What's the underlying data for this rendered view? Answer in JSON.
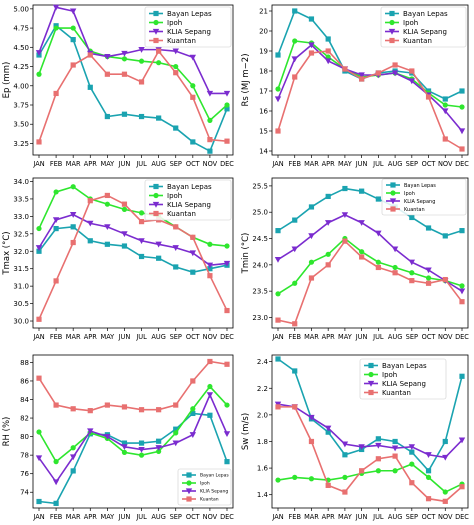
{
  "chart_data": [
    {
      "type": "line",
      "title": "",
      "xlabel": "",
      "ylabel": "Ep (mm)",
      "categories": [
        "JAN",
        "FEB",
        "MAR",
        "APR",
        "MAY",
        "JUN",
        "JUL",
        "AUG",
        "SEP",
        "OCT",
        "NOV",
        "DEC"
      ],
      "ylim": [
        3.1,
        5.05
      ],
      "yticks": [
        "3.25",
        "3.50",
        "3.75",
        "4.00",
        "4.25",
        "4.50",
        "4.75",
        "5.00"
      ],
      "legend_position": "top-right",
      "series": [
        {
          "name": "Bayan Lepas",
          "color": "#1aa3b0",
          "marker": "square",
          "values": [
            4.4,
            4.78,
            4.6,
            3.98,
            3.6,
            3.63,
            3.6,
            3.58,
            3.45,
            3.27,
            3.15,
            3.7
          ]
        },
        {
          "name": "Ipoh",
          "color": "#2ee62e",
          "marker": "circle",
          "values": [
            4.15,
            4.75,
            4.75,
            4.45,
            4.38,
            4.35,
            4.32,
            4.3,
            4.25,
            4.0,
            3.55,
            3.75
          ]
        },
        {
          "name": "KLIA Sepang",
          "color": "#7b2ccf",
          "marker": "triangle-down",
          "values": [
            4.43,
            5.02,
            4.97,
            4.42,
            4.38,
            4.42,
            4.47,
            4.47,
            4.45,
            4.37,
            3.9,
            3.9
          ]
        },
        {
          "name": "Kuantan",
          "color": "#e87070",
          "marker": "square",
          "values": [
            3.27,
            3.9,
            4.27,
            4.4,
            4.15,
            4.15,
            4.05,
            4.45,
            4.17,
            3.85,
            3.3,
            3.28
          ]
        }
      ]
    },
    {
      "type": "line",
      "title": "",
      "xlabel": "",
      "ylabel": "Rs (MJ m−2)",
      "categories": [
        "JAN",
        "FEB",
        "MAR",
        "APR",
        "MAY",
        "JUN",
        "JUL",
        "AUG",
        "SEP",
        "OCT",
        "NOV",
        "DEC"
      ],
      "ylim": [
        13.8,
        21.3
      ],
      "yticks": [
        "14",
        "15",
        "16",
        "17",
        "18",
        "19",
        "20",
        "21"
      ],
      "legend_position": "top-right",
      "series": [
        {
          "name": "Bayan Lepas",
          "color": "#1aa3b0",
          "marker": "square",
          "values": [
            18.8,
            21.0,
            20.6,
            19.6,
            18.0,
            17.6,
            17.9,
            18.0,
            17.9,
            17.0,
            16.6,
            17.0
          ]
        },
        {
          "name": "Ipoh",
          "color": "#2ee62e",
          "marker": "circle",
          "values": [
            17.1,
            19.5,
            19.4,
            18.7,
            18.1,
            17.7,
            17.8,
            17.9,
            17.6,
            16.9,
            16.3,
            16.2
          ]
        },
        {
          "name": "KLIA Sepang",
          "color": "#7b2ccf",
          "marker": "triangle-down",
          "values": [
            16.6,
            18.6,
            19.3,
            18.5,
            18.1,
            17.8,
            17.8,
            17.9,
            17.5,
            16.8,
            16.0,
            15.0
          ]
        },
        {
          "name": "Kuantan",
          "color": "#e87070",
          "marker": "square",
          "values": [
            15.0,
            17.7,
            18.9,
            19.0,
            18.1,
            17.6,
            17.9,
            18.3,
            18.0,
            16.7,
            14.6,
            14.1
          ]
        }
      ]
    },
    {
      "type": "line",
      "title": "",
      "xlabel": "",
      "ylabel": "Tmax (°C)",
      "categories": [
        "JAN",
        "FEB",
        "MAR",
        "APR",
        "MAY",
        "JUN",
        "JUL",
        "AUG",
        "SEP",
        "OCT",
        "NOV",
        "DEC"
      ],
      "ylim": [
        29.8,
        34.1
      ],
      "yticks": [
        "30.0",
        "30.5",
        "31.0",
        "31.5",
        "32.0",
        "32.5",
        "33.0",
        "33.5",
        "34.0"
      ],
      "legend_position": "top-right",
      "series": [
        {
          "name": "Bayan Lepas",
          "color": "#1aa3b0",
          "marker": "square",
          "values": [
            32.0,
            32.65,
            32.7,
            32.3,
            32.2,
            32.15,
            31.85,
            31.8,
            31.55,
            31.4,
            31.5,
            31.6
          ]
        },
        {
          "name": "Ipoh",
          "color": "#2ee62e",
          "marker": "circle",
          "values": [
            32.65,
            33.7,
            33.85,
            33.5,
            33.35,
            33.2,
            33.1,
            33.0,
            32.7,
            32.4,
            32.2,
            32.15
          ]
        },
        {
          "name": "KLIA Sepang",
          "color": "#7b2ccf",
          "marker": "triangle-down",
          "values": [
            32.1,
            32.9,
            33.05,
            32.8,
            32.7,
            32.5,
            32.3,
            32.2,
            32.1,
            31.95,
            31.6,
            31.65
          ]
        },
        {
          "name": "Kuantan",
          "color": "#e87070",
          "marker": "square",
          "values": [
            30.05,
            31.15,
            32.25,
            33.45,
            33.6,
            33.35,
            32.85,
            32.9,
            32.7,
            32.4,
            31.3,
            30.3
          ]
        }
      ]
    },
    {
      "type": "line",
      "title": "",
      "xlabel": "",
      "ylabel": "Tmin (°C)",
      "categories": [
        "JAN",
        "FEB",
        "MAR",
        "APR",
        "MAY",
        "JUN",
        "JUL",
        "AUG",
        "SEP",
        "OCT",
        "NOV",
        "DEC"
      ],
      "ylim": [
        22.8,
        25.65
      ],
      "yticks": [
        "23.0",
        "23.5",
        "24.0",
        "24.5",
        "25.0",
        "25.5"
      ],
      "legend_position": "top-right",
      "series": [
        {
          "name": "Bayan Lepas",
          "color": "#1aa3b0",
          "marker": "square",
          "values": [
            24.65,
            24.85,
            25.1,
            25.3,
            25.45,
            25.4,
            25.25,
            25.1,
            24.9,
            24.7,
            24.55,
            24.65
          ]
        },
        {
          "name": "Ipoh",
          "color": "#2ee62e",
          "marker": "circle",
          "values": [
            23.45,
            23.65,
            24.05,
            24.2,
            24.5,
            24.25,
            24.05,
            23.95,
            23.85,
            23.75,
            23.7,
            23.6
          ]
        },
        {
          "name": "KLIA Sepang",
          "color": "#7b2ccf",
          "marker": "triangle-down",
          "values": [
            24.1,
            24.3,
            24.55,
            24.8,
            24.95,
            24.8,
            24.6,
            24.3,
            24.05,
            23.9,
            23.7,
            23.5
          ]
        },
        {
          "name": "Kuantan",
          "color": "#e87070",
          "marker": "square",
          "values": [
            22.95,
            22.88,
            23.75,
            24.0,
            24.45,
            24.15,
            23.95,
            23.85,
            23.7,
            23.65,
            23.72,
            23.3
          ]
        }
      ]
    },
    {
      "type": "line",
      "title": "",
      "xlabel": "",
      "ylabel": "RH (%)",
      "categories": [
        "JAN",
        "FEB",
        "MAR",
        "APR",
        "MAY",
        "JUN",
        "JUL",
        "AUG",
        "SEP",
        "OCT",
        "NOV",
        "DEC"
      ],
      "ylim": [
        72.3,
        88.8
      ],
      "yticks": [
        "74",
        "76",
        "78",
        "80",
        "82",
        "84",
        "86",
        "88"
      ],
      "legend_position": "bottom-right",
      "series": [
        {
          "name": "Bayan Lepas",
          "color": "#1aa3b0",
          "marker": "square",
          "values": [
            73.0,
            72.8,
            76.3,
            80.3,
            80.2,
            79.3,
            79.3,
            79.5,
            80.8,
            82.5,
            82.3,
            77.3
          ]
        },
        {
          "name": "Ipoh",
          "color": "#2ee62e",
          "marker": "circle",
          "values": [
            80.5,
            77.3,
            78.8,
            80.4,
            79.8,
            78.3,
            78.0,
            78.4,
            80.4,
            83.0,
            85.4,
            83.4
          ]
        },
        {
          "name": "KLIA Sepang",
          "color": "#7b2ccf",
          "marker": "triangle-down",
          "values": [
            77.7,
            75.1,
            77.8,
            80.6,
            80.0,
            78.9,
            78.6,
            78.8,
            79.3,
            80.2,
            84.5,
            80.3
          ]
        },
        {
          "name": "Kuantan",
          "color": "#e87070",
          "marker": "square",
          "values": [
            86.3,
            83.4,
            83.0,
            82.8,
            83.4,
            83.2,
            82.9,
            82.9,
            83.4,
            86.0,
            88.1,
            87.8
          ]
        }
      ]
    },
    {
      "type": "line",
      "title": "",
      "xlabel": "",
      "ylabel": "Sw (m/s)",
      "categories": [
        "JAN",
        "FEB",
        "MAR",
        "APR",
        "MAY",
        "JUN",
        "JUL",
        "AUG",
        "SEP",
        "OCT",
        "NOV",
        "DEC"
      ],
      "ylim": [
        1.3,
        2.45
      ],
      "yticks": [
        "1.4",
        "1.6",
        "1.8",
        "2.0",
        "2.2",
        "2.4"
      ],
      "legend_position": "top-right",
      "series": [
        {
          "name": "Bayan Lepas",
          "color": "#1aa3b0",
          "marker": "square",
          "values": [
            2.42,
            2.33,
            1.97,
            1.87,
            1.7,
            1.74,
            1.82,
            1.8,
            1.72,
            1.58,
            1.8,
            2.29
          ]
        },
        {
          "name": "Ipoh",
          "color": "#2ee62e",
          "marker": "circle",
          "values": [
            1.51,
            1.53,
            1.52,
            1.51,
            1.53,
            1.56,
            1.58,
            1.58,
            1.63,
            1.53,
            1.42,
            1.48
          ]
        },
        {
          "name": "KLIA Sepang",
          "color": "#7b2ccf",
          "marker": "triangle-down",
          "values": [
            2.08,
            2.06,
            1.98,
            1.9,
            1.78,
            1.76,
            1.77,
            1.75,
            1.76,
            1.7,
            1.68,
            1.81
          ]
        },
        {
          "name": "Kuantan",
          "color": "#e87070",
          "marker": "square",
          "values": [
            2.06,
            2.06,
            1.8,
            1.47,
            1.42,
            1.58,
            1.67,
            1.69,
            1.49,
            1.37,
            1.35,
            1.46
          ]
        }
      ]
    }
  ]
}
